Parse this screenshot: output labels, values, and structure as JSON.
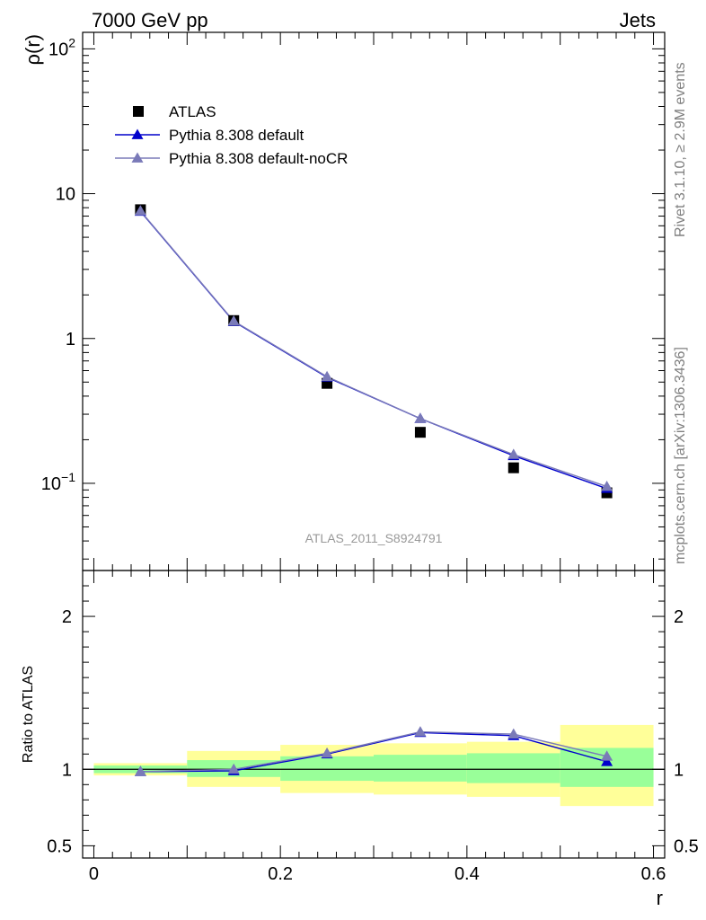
{
  "header": {
    "left_label": "7000 GeV pp",
    "right_label": "Jets"
  },
  "side_labels": {
    "rivet": "Rivet 3.1.10, ≥ 2.9M events",
    "mcplots": "mcplots.cern.ch [arXiv:1306.3436]"
  },
  "chart_data": [
    {
      "type": "scatter",
      "panel": "main",
      "title": "",
      "xlabel": "",
      "ylabel": "ρ(r)",
      "yscale": "log",
      "ylim": [
        0.025,
        130
      ],
      "xlim": [
        -0.012,
        0.612
      ],
      "analysis_label": "ATLAS_2011_S8924791",
      "y_ticks": [
        {
          "value": 0.1,
          "base": "10",
          "exp": "−1"
        },
        {
          "value": 1,
          "base": "1",
          "exp": ""
        },
        {
          "value": 10,
          "base": "10",
          "exp": ""
        },
        {
          "value": 100,
          "base": "10",
          "exp": "2"
        }
      ],
      "legend": {
        "position": "top-left",
        "entries": [
          "ATLAS",
          "Pythia 8.308 default",
          "Pythia 8.308 default-noCR"
        ]
      },
      "x": [
        0.05,
        0.15,
        0.25,
        0.35,
        0.45,
        0.55
      ],
      "series": [
        {
          "name": "ATLAS",
          "marker": "square",
          "color": "#000000",
          "values": [
            7.75,
            1.33,
            0.49,
            0.225,
            0.128,
            0.086
          ]
        },
        {
          "name": "Pythia 8.308 default",
          "marker": "triangle",
          "color": "#0000cc",
          "values": [
            7.55,
            1.31,
            0.54,
            0.28,
            0.155,
            0.092
          ]
        },
        {
          "name": "Pythia 8.308 default-noCR",
          "marker": "triangle",
          "color": "#7a7ab8",
          "values": [
            7.6,
            1.32,
            0.545,
            0.28,
            0.158,
            0.095
          ]
        }
      ]
    },
    {
      "type": "line",
      "panel": "ratio",
      "xlabel": "r",
      "ylabel": "Ratio to ATLAS",
      "ylim": [
        0.42,
        2.3
      ],
      "xlim": [
        -0.012,
        0.612
      ],
      "x_ticks": [
        "0",
        "0.2",
        "0.4",
        "0.6"
      ],
      "y_ticks": [
        "0.5",
        "1",
        "2"
      ],
      "bins": [
        {
          "low": 0.0,
          "high": 0.1,
          "band_inner": [
            0.975,
            1.025
          ],
          "band_outer": [
            0.96,
            1.04
          ]
        },
        {
          "low": 0.1,
          "high": 0.2,
          "band_inner": [
            0.95,
            1.06
          ],
          "band_outer": [
            0.885,
            1.12
          ]
        },
        {
          "low": 0.2,
          "high": 0.3,
          "band_inner": [
            0.925,
            1.085
          ],
          "band_outer": [
            0.845,
            1.16
          ]
        },
        {
          "low": 0.3,
          "high": 0.4,
          "band_inner": [
            0.92,
            1.095
          ],
          "band_outer": [
            0.835,
            1.17
          ]
        },
        {
          "low": 0.4,
          "high": 0.5,
          "band_inner": [
            0.91,
            1.105
          ],
          "band_outer": [
            0.82,
            1.18
          ]
        },
        {
          "low": 0.5,
          "high": 0.6,
          "band_inner": [
            0.885,
            1.14
          ],
          "band_outer": [
            0.76,
            1.29
          ]
        }
      ],
      "x": [
        0.05,
        0.15,
        0.25,
        0.35,
        0.45,
        0.55
      ],
      "series": [
        {
          "name": "Pythia 8.308 default",
          "color": "#0000cc",
          "values": [
            0.985,
            0.99,
            1.1,
            1.24,
            1.22,
            1.05
          ]
        },
        {
          "name": "Pythia 8.308 default-noCR",
          "color": "#7a7ab8",
          "values": [
            0.985,
            1.0,
            1.105,
            1.245,
            1.23,
            1.085
          ]
        }
      ]
    }
  ],
  "colors": {
    "band_outer": "#ffff99",
    "band_inner": "#99ff99",
    "side_text": "#7f7f7f",
    "analysis_text": "#999999"
  }
}
